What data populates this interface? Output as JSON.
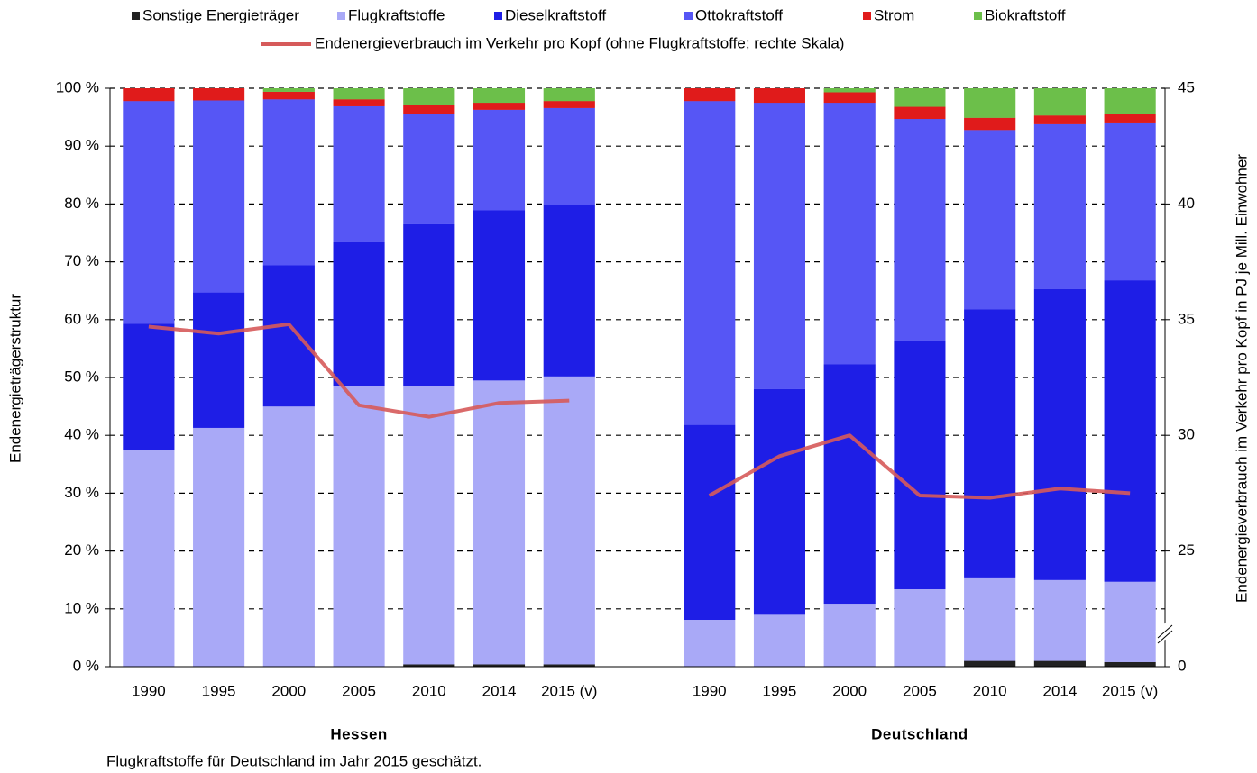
{
  "chart_data": {
    "type": "bar",
    "stacked": true,
    "categories": [
      "1990",
      "1995",
      "2000",
      "2005",
      "2010",
      "2014",
      "2015 (v)",
      null,
      "1990",
      "1995",
      "2000",
      "2005",
      "2010",
      "2014",
      "2015 (v)"
    ],
    "groups": [
      "Hessen",
      "Deutschland"
    ],
    "series": [
      {
        "name": "Sonstige Energieträger",
        "color": "#222222",
        "values": [
          0,
          0,
          0,
          0,
          0.4,
          0.4,
          0.4,
          null,
          0,
          0,
          0,
          0,
          1.0,
          1.0,
          0.8
        ]
      },
      {
        "name": "Flugkraftstoffe",
        "color": "#a9a9f7",
        "values": [
          37.5,
          41.3,
          45.0,
          48.6,
          48.2,
          49.1,
          49.8,
          null,
          8.1,
          9.0,
          10.9,
          13.4,
          14.3,
          14.0,
          13.9
        ]
      },
      {
        "name": "Dieselkraftstoff",
        "color": "#1e1ee6",
        "values": [
          21.8,
          23.4,
          24.4,
          24.8,
          27.9,
          29.4,
          29.6,
          null,
          33.7,
          39.0,
          41.4,
          43.0,
          46.5,
          50.3,
          52.1
        ]
      },
      {
        "name": "Ottokraftstoff",
        "color": "#5656f5",
        "values": [
          38.5,
          33.2,
          28.7,
          23.5,
          19.1,
          17.4,
          16.8,
          null,
          56.0,
          49.5,
          45.2,
          38.3,
          31.0,
          28.5,
          27.3
        ]
      },
      {
        "name": "Strom",
        "color": "#e01b1b",
        "values": [
          2.2,
          2.1,
          1.3,
          1.2,
          1.6,
          1.2,
          1.2,
          null,
          2.2,
          2.5,
          1.8,
          2.1,
          2.1,
          1.5,
          1.5
        ]
      },
      {
        "name": "Biokraftstoff",
        "color": "#6cbf4a",
        "values": [
          0,
          0,
          0.6,
          1.9,
          2.8,
          2.5,
          2.2,
          null,
          0,
          0,
          0.7,
          3.2,
          5.1,
          4.7,
          4.4
        ]
      },
      {
        "name": "Endenergieverbrauch im Verkehr pro Kopf (ohne Flugkraftstoffe; rechte Skala)",
        "type": "line",
        "axis": "y2",
        "color": "#d65a5a",
        "values": [
          34.7,
          34.4,
          34.8,
          31.3,
          30.8,
          31.4,
          31.5,
          null,
          27.4,
          29.1,
          30.0,
          27.4,
          27.3,
          27.7,
          27.5
        ]
      }
    ],
    "ylim": [
      0,
      100
    ],
    "yticks": [
      {
        "value": 0,
        "label": "0 %"
      },
      {
        "value": 10,
        "label": "10 %"
      },
      {
        "value": 20,
        "label": "20 %"
      },
      {
        "value": 30,
        "label": "30 %"
      },
      {
        "value": 40,
        "label": "40 %"
      },
      {
        "value": 50,
        "label": "50 %"
      },
      {
        "value": 60,
        "label": "60 %"
      },
      {
        "value": 70,
        "label": "70 %"
      },
      {
        "value": 80,
        "label": "80 %"
      },
      {
        "value": 90,
        "label": "90 %"
      },
      {
        "value": 100,
        "label": "100 %"
      }
    ],
    "y2lim": [
      0,
      45
    ],
    "y2break": [
      0,
      20
    ],
    "y2ticks": [
      0,
      25,
      30,
      35,
      40,
      45
    ],
    "ylabel": "Endenergieträgerstruktur",
    "y2label": "Endenergieverbrauch im Verkehr pro Kopf in PJ je Mill.  Einwohner",
    "note": "Flugkraftstoffe für Deutschland im Jahr 2015 geschätzt.",
    "grid": true,
    "legend": "top"
  }
}
